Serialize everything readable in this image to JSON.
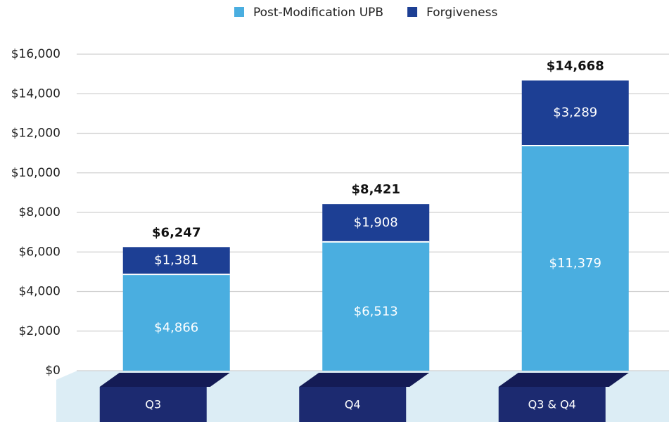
{
  "chart_data": {
    "type": "stacked-bar",
    "categories": [
      "Q3",
      "Q4",
      "Q3 & Q4"
    ],
    "series": [
      {
        "name": "Post-Modification UPB",
        "color": "#4aaee0",
        "values": [
          4866,
          6513,
          11379
        ],
        "value_labels": [
          "$4,866",
          "$6,513",
          "$11,379"
        ]
      },
      {
        "name": "Forgiveness",
        "color": "#1d3f94",
        "values": [
          1381,
          1908,
          3289
        ],
        "value_labels": [
          "$1,381",
          "$1,908",
          "$3,289"
        ]
      }
    ],
    "totals": [
      6247,
      8421,
      14668
    ],
    "total_labels": [
      "$6,247",
      "$8,421",
      "$14,668"
    ],
    "ylim": [
      0,
      16000
    ],
    "yticks": [
      {
        "value": 0,
        "label": "$0"
      },
      {
        "value": 2000,
        "label": "$2,000"
      },
      {
        "value": 4000,
        "label": "$4,000"
      },
      {
        "value": 6000,
        "label": "$6,000"
      },
      {
        "value": 8000,
        "label": "$8,000"
      },
      {
        "value": 10000,
        "label": "$10,000"
      },
      {
        "value": 12000,
        "label": "$12,000"
      },
      {
        "value": 14000,
        "label": "$14,000"
      },
      {
        "value": 16000,
        "label": "$16,000"
      }
    ],
    "grid": true
  }
}
